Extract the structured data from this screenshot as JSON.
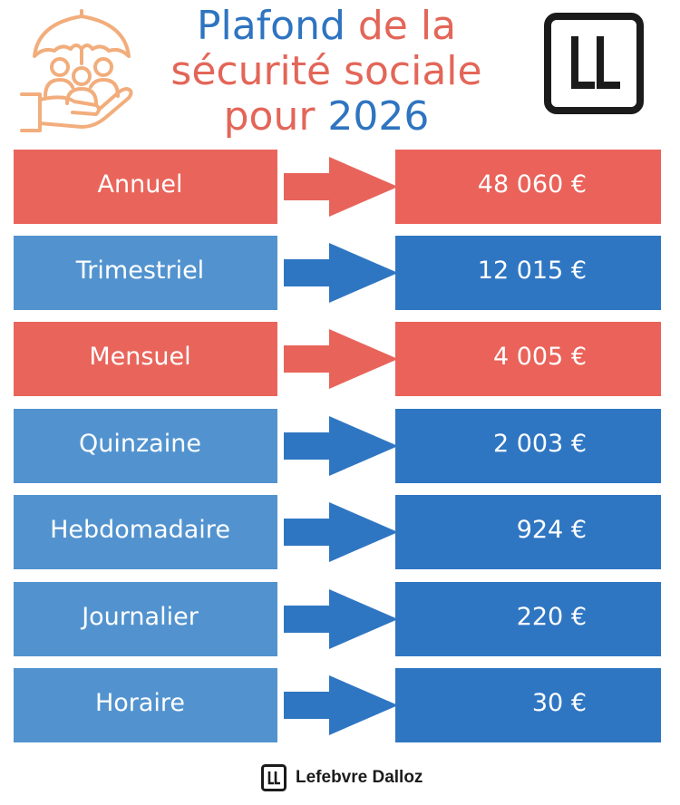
{
  "header": {
    "title_parts": [
      {
        "text": "Plafond ",
        "color": "#2e74c0"
      },
      {
        "text": "de la",
        "color": "#e36658"
      },
      {
        "text": "sécurité sociale",
        "color": "#e36658"
      },
      {
        "text": "pour ",
        "color": "#e36658"
      },
      {
        "text": "2026",
        "color": "#2e74c0"
      }
    ],
    "icon": "umbrella-protecting-family-icon",
    "brand_mark_icon": "lefebvre-dalloz-mark-icon"
  },
  "colors": {
    "red_label": "#e9655b",
    "red_value": "#ea6259",
    "blue_label": "#5293cf",
    "blue_value": "#2f76c2",
    "red_arrow": "#e8645a",
    "blue_arrow": "#2f76c2",
    "icon_line": "#f2ad7c"
  },
  "rows": [
    {
      "label": "Annuel",
      "value": "48 060 €",
      "tone": "red"
    },
    {
      "label": "Trimestriel",
      "value": "12 015 €",
      "tone": "blue"
    },
    {
      "label": "Mensuel",
      "value": "4 005 €",
      "tone": "red"
    },
    {
      "label": "Quinzaine",
      "value": "2 003 €",
      "tone": "blue"
    },
    {
      "label": "Hebdomadaire",
      "value": "924 €",
      "tone": "blue"
    },
    {
      "label": "Journalier",
      "value": "220 €",
      "tone": "blue"
    },
    {
      "label": "Horaire",
      "value": "30 €",
      "tone": "blue"
    }
  ],
  "footer": {
    "brand_name": "Lefebvre Dalloz",
    "brand_icon": "lefebvre-dalloz-mark-icon"
  }
}
